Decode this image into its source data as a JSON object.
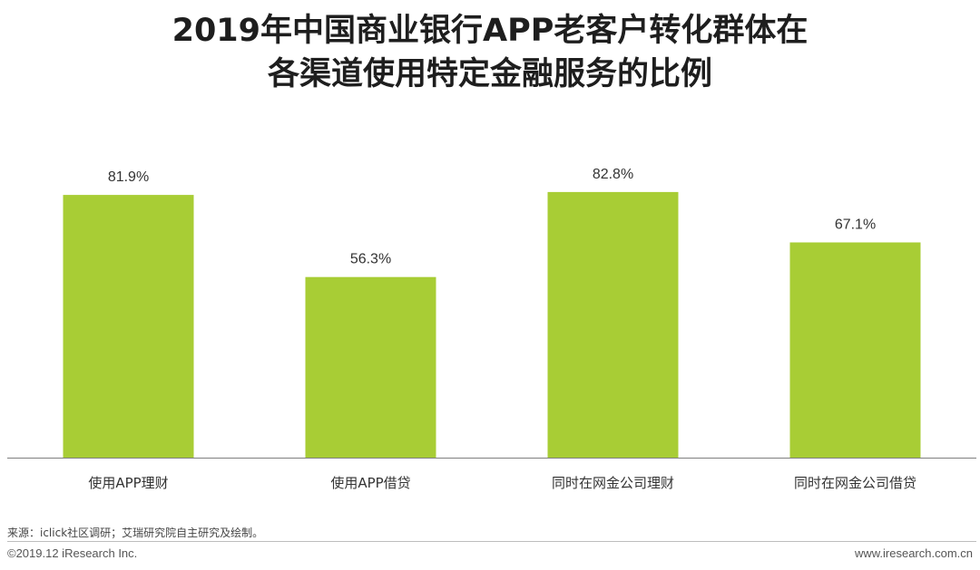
{
  "title": {
    "line1": "2019年中国商业银行APP老客户转化群体在",
    "line2": "各渠道使用特定金融服务的比例"
  },
  "chart_data": {
    "type": "bar",
    "categories": [
      "使用APP理财",
      "使用APP借贷",
      "同时在网金公司理财",
      "同时在网金公司借贷"
    ],
    "values": [
      81.9,
      56.3,
      82.8,
      67.1
    ],
    "value_labels": [
      "81.9%",
      "56.3%",
      "82.8%",
      "67.1%"
    ],
    "unit": "%",
    "ylim": [
      0,
      100
    ],
    "grid": false,
    "legend": "none",
    "bar_color": "#a8cd35",
    "axis_color": "#7f7f7f"
  },
  "footer": {
    "source": "来源：iclick社区调研；艾瑞研究院自主研究及绘制。",
    "copyright": "©2019.12 iResearch Inc.",
    "website": "www.iresearch.com.cn"
  }
}
